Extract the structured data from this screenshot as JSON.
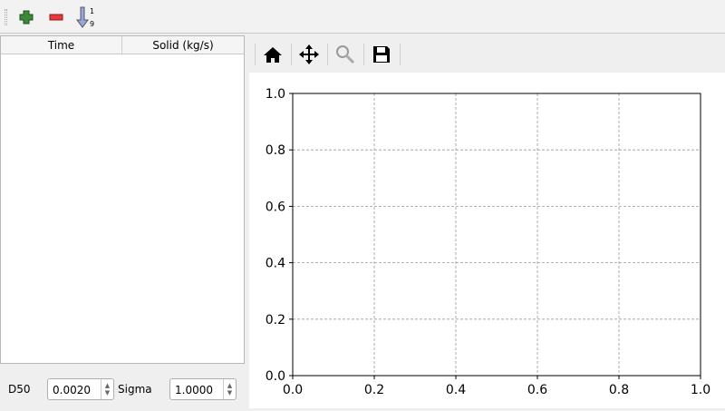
{
  "toolbar": {
    "items": [
      {
        "name": "add-row",
        "icon": "plus-icon",
        "color": "#3a8a3a"
      },
      {
        "name": "remove-row",
        "icon": "minus-icon",
        "color": "#e03030"
      },
      {
        "name": "sort",
        "icon": "sort-ascending-icon",
        "label_top": "1",
        "label_bottom": "9"
      }
    ]
  },
  "table": {
    "columns": [
      "Time",
      "Solid (kg/s)"
    ],
    "rows": []
  },
  "params": {
    "d50_label": "D50",
    "d50_value": "0.0020",
    "sigma_label": "Sigma",
    "sigma_value": "1.0000"
  },
  "plot_toolbar": {
    "buttons": [
      "home-icon",
      "pan-icon",
      "zoom-icon",
      "save-icon"
    ]
  },
  "chart_data": {
    "type": "line",
    "series": [],
    "xlim": [
      0,
      1
    ],
    "ylim": [
      0,
      1
    ],
    "xticks": [
      "0.0",
      "0.2",
      "0.4",
      "0.6",
      "0.8",
      "1.0"
    ],
    "yticks": [
      "0.0",
      "0.2",
      "0.4",
      "0.6",
      "0.8",
      "1.0"
    ],
    "grid": true,
    "title": "",
    "xlabel": "",
    "ylabel": ""
  }
}
